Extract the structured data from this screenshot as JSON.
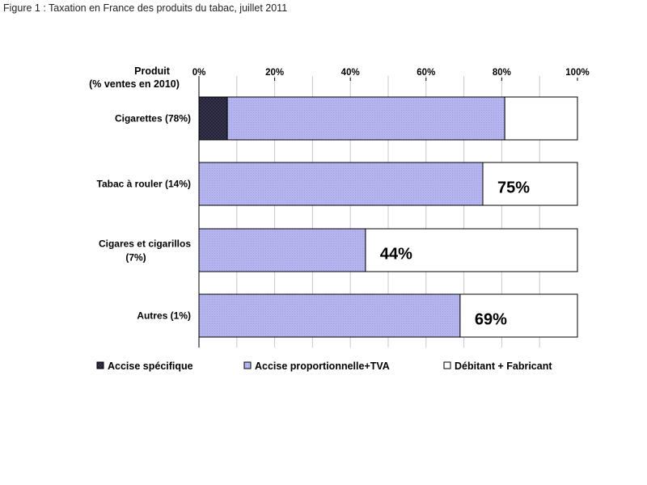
{
  "figure_caption": "Figure 1 : Taxation en France des produits du tabac, juillet 2011",
  "colors": {
    "accise_specifique": "#3a3a58",
    "accise_proportionnelle": "#b4b4ee",
    "debitant_fabricant": "#ffffff",
    "grid": "#c8c8c8"
  },
  "chart_data": {
    "type": "bar",
    "orientation": "horizontal",
    "stacked": true,
    "axis_title_line1": "Produit",
    "axis_title_line2": "(% ventes en 2010)",
    "xlim": [
      0,
      100
    ],
    "ticks": [
      0,
      20,
      40,
      60,
      80,
      100
    ],
    "tick_labels": [
      "0%",
      "20%",
      "40%",
      "60%",
      "80%",
      "100%"
    ],
    "grid": true,
    "legend_position": "bottom",
    "categories": [
      {
        "line1": "Cigarettes (78%)",
        "line2": ""
      },
      {
        "line1": "Tabac à rouler (14%)",
        "line2": ""
      },
      {
        "line1": "Cigares et cigarillos",
        "line2": "(7%)"
      },
      {
        "line1": "Autres (1%)",
        "line2": ""
      }
    ],
    "series": [
      {
        "name": "Accise spécifique",
        "values": [
          7.5,
          0,
          0,
          0
        ]
      },
      {
        "name": "Accise proportionnelle+TVA",
        "values": [
          73.3,
          75,
          44,
          69
        ]
      },
      {
        "name": "Débitant + Fabricant",
        "values": [
          19.2,
          25,
          56,
          31
        ]
      }
    ],
    "data_labels": [
      "",
      "75%",
      "44%",
      "69%"
    ]
  }
}
